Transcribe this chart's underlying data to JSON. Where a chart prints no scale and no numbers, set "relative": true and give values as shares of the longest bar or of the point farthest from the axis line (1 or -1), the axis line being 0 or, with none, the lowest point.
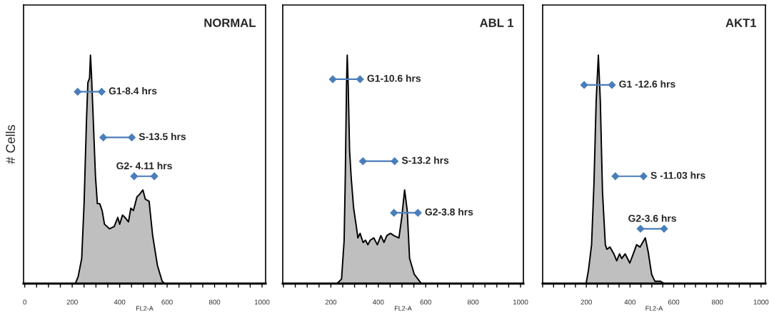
{
  "chart_data": [
    {
      "type": "area",
      "title": "NORMAL",
      "xlabel": "FL2-A",
      "ylabel": "# Cells",
      "relative": true,
      "xlim": [
        -5,
        1015
      ],
      "xticks": [
        0,
        {
          "value": 50,
          "label": null
        },
        {
          "value": 100,
          "label": null
        },
        {
          "value": 150,
          "label": null
        },
        200,
        {
          "value": 250,
          "label": null
        },
        {
          "value": 300,
          "label": null
        },
        {
          "value": 350,
          "label": null
        },
        400,
        {
          "value": 450,
          "label": null
        },
        {
          "value": 500,
          "label": null
        },
        {
          "value": 550,
          "label": null
        },
        600,
        {
          "value": 650,
          "label": null
        },
        {
          "value": 700,
          "label": null
        },
        {
          "value": 750,
          "label": null
        },
        800,
        {
          "value": 850,
          "label": null
        },
        {
          "value": 900,
          "label": null
        },
        {
          "value": 950,
          "label": null
        },
        1000
      ],
      "series": [
        {
          "color": "#bfbfbf",
          "marker": "none",
          "x": [
            213,
            225,
            240,
            250,
            260,
            266,
            273,
            277,
            281,
            289,
            298,
            306,
            316,
            326,
            336,
            357,
            377,
            392,
            400,
            412,
            422,
            437,
            447,
            458,
            473,
            483,
            498,
            508,
            524,
            539,
            559,
            579,
            589
          ],
          "values": [
            0,
            0.03,
            0.11,
            0.35,
            0.71,
            0.88,
            0.9,
            1.0,
            0.92,
            0.71,
            0.47,
            0.35,
            0.35,
            0.32,
            0.26,
            0.24,
            0.25,
            0.29,
            0.26,
            0.3,
            0.29,
            0.27,
            0.33,
            0.32,
            0.38,
            0.39,
            0.41,
            0.37,
            0.36,
            0.21,
            0.08,
            0.01,
            0
          ]
        },
        {
          "type": "line",
          "name": "G1-8.4 hrs",
          "color": "#4a7ebb",
          "marker": "diamond",
          "x": [
            223,
            324
          ],
          "values": [
            0.84,
            0.84
          ]
        },
        {
          "type": "line",
          "name": "S-13.5 hrs",
          "color": "#4a7ebb",
          "marker": "diamond",
          "x": [
            331,
            451
          ],
          "values": [
            0.64,
            0.64
          ]
        },
        {
          "type": "line",
          "name": "G2- 4.11 hrs",
          "color": "#4a7ebb",
          "marker": "diamond",
          "x": [
            461,
            546
          ],
          "values": [
            0.47,
            0.47
          ]
        }
      ]
    },
    {
      "type": "area",
      "title": "ABL 1",
      "xlabel": "FL2-A",
      "relative": true,
      "xlim": [
        -3,
        1012
      ],
      "xticks": [
        {
          "value": 0,
          "label": null
        },
        {
          "value": 50,
          "label": null
        },
        {
          "value": 100,
          "label": null
        },
        {
          "value": 150,
          "label": null
        },
        200,
        {
          "value": 250,
          "label": null
        },
        {
          "value": 300,
          "label": null
        },
        {
          "value": 350,
          "label": null
        },
        400,
        {
          "value": 450,
          "label": null
        },
        {
          "value": 500,
          "label": null
        },
        {
          "value": 550,
          "label": null
        },
        600,
        {
          "value": 650,
          "label": null
        },
        {
          "value": 700,
          "label": null
        },
        {
          "value": 750,
          "label": null
        },
        800,
        {
          "value": 850,
          "label": null
        },
        {
          "value": 900,
          "label": null
        },
        {
          "value": 950,
          "label": null
        },
        1000
      ],
      "series": [
        {
          "color": "#bfbfbf",
          "marker": "none",
          "x": [
            226,
            245,
            256,
            261,
            266,
            269,
            273,
            279,
            286,
            296,
            306,
            314,
            323,
            336,
            346,
            356,
            366,
            381,
            396,
            411,
            424,
            436,
            451,
            466,
            487,
            499,
            511,
            522,
            532,
            552,
            582
          ],
          "values": [
            0,
            0.02,
            0.19,
            0.48,
            0.87,
            1.0,
            0.87,
            0.58,
            0.46,
            0.33,
            0.26,
            0.2,
            0.22,
            0.18,
            0.19,
            0.17,
            0.19,
            0.2,
            0.17,
            0.21,
            0.18,
            0.21,
            0.22,
            0.21,
            0.2,
            0.29,
            0.41,
            0.32,
            0.11,
            0.04,
            0
          ]
        },
        {
          "type": "line",
          "name": "G1-10.6 hrs",
          "color": "#4a7ebb",
          "marker": "diamond",
          "x": [
            208,
            323
          ],
          "values": [
            0.895,
            0.895
          ]
        },
        {
          "type": "line",
          "name": "S-13.2 hrs",
          "color": "#4a7ebb",
          "marker": "diamond",
          "x": [
            335,
            469
          ],
          "values": [
            0.536,
            0.536
          ]
        },
        {
          "type": "line",
          "name": "G2-3.8 hrs",
          "color": "#4a7ebb",
          "marker": "diamond",
          "x": [
            466,
            567
          ],
          "values": [
            0.31,
            0.31
          ]
        }
      ]
    },
    {
      "type": "area",
      "title": "AKT1",
      "xlabel": "FL2-A",
      "relative": true,
      "xlim": [
        0,
        1020
      ],
      "xticks": [
        {
          "value": 0,
          "label": null
        },
        {
          "value": 50,
          "label": null
        },
        {
          "value": 100,
          "label": null
        },
        {
          "value": 150,
          "label": null
        },
        200,
        {
          "value": 250,
          "label": null
        },
        {
          "value": 300,
          "label": null
        },
        {
          "value": 350,
          "label": null
        },
        400,
        {
          "value": 450,
          "label": null
        },
        {
          "value": 500,
          "label": null
        },
        {
          "value": 550,
          "label": null
        },
        600,
        {
          "value": 650,
          "label": null
        },
        {
          "value": 700,
          "label": null
        },
        {
          "value": 750,
          "label": null
        },
        800,
        {
          "value": 850,
          "label": null
        },
        {
          "value": 900,
          "label": null
        },
        {
          "value": 950,
          "label": null
        },
        1000
      ],
      "series": [
        {
          "color": "#bfbfbf",
          "marker": "none",
          "x": [
            199,
            210,
            224,
            235,
            245,
            255,
            264,
            274,
            287,
            294,
            308,
            326,
            339,
            352,
            362,
            378,
            399,
            415,
            430,
            446,
            470,
            483,
            499,
            514,
            540,
            556
          ],
          "values": [
            0,
            0.06,
            0.17,
            0.44,
            0.8,
            1.0,
            0.8,
            0.4,
            0.17,
            0.15,
            0.16,
            0.13,
            0.1,
            0.13,
            0.11,
            0.13,
            0.09,
            0.13,
            0.17,
            0.16,
            0.2,
            0.14,
            0.04,
            0.01,
            0.01,
            0
          ]
        },
        {
          "type": "line",
          "name": "G1 -12.6 hrs",
          "color": "#4a7ebb",
          "marker": "diamond",
          "x": [
            190,
            317
          ],
          "values": [
            0.87,
            0.87
          ]
        },
        {
          "type": "line",
          "name": "S -11.03 hrs",
          "color": "#4a7ebb",
          "marker": "diamond",
          "x": [
            333,
            462
          ],
          "values": [
            0.47,
            0.47
          ]
        },
        {
          "type": "line",
          "name": "G2-3.6 hrs",
          "color": "#4a7ebb",
          "marker": "diamond",
          "x": [
            448,
            556
          ],
          "values": [
            0.24,
            0.24
          ]
        }
      ]
    }
  ]
}
